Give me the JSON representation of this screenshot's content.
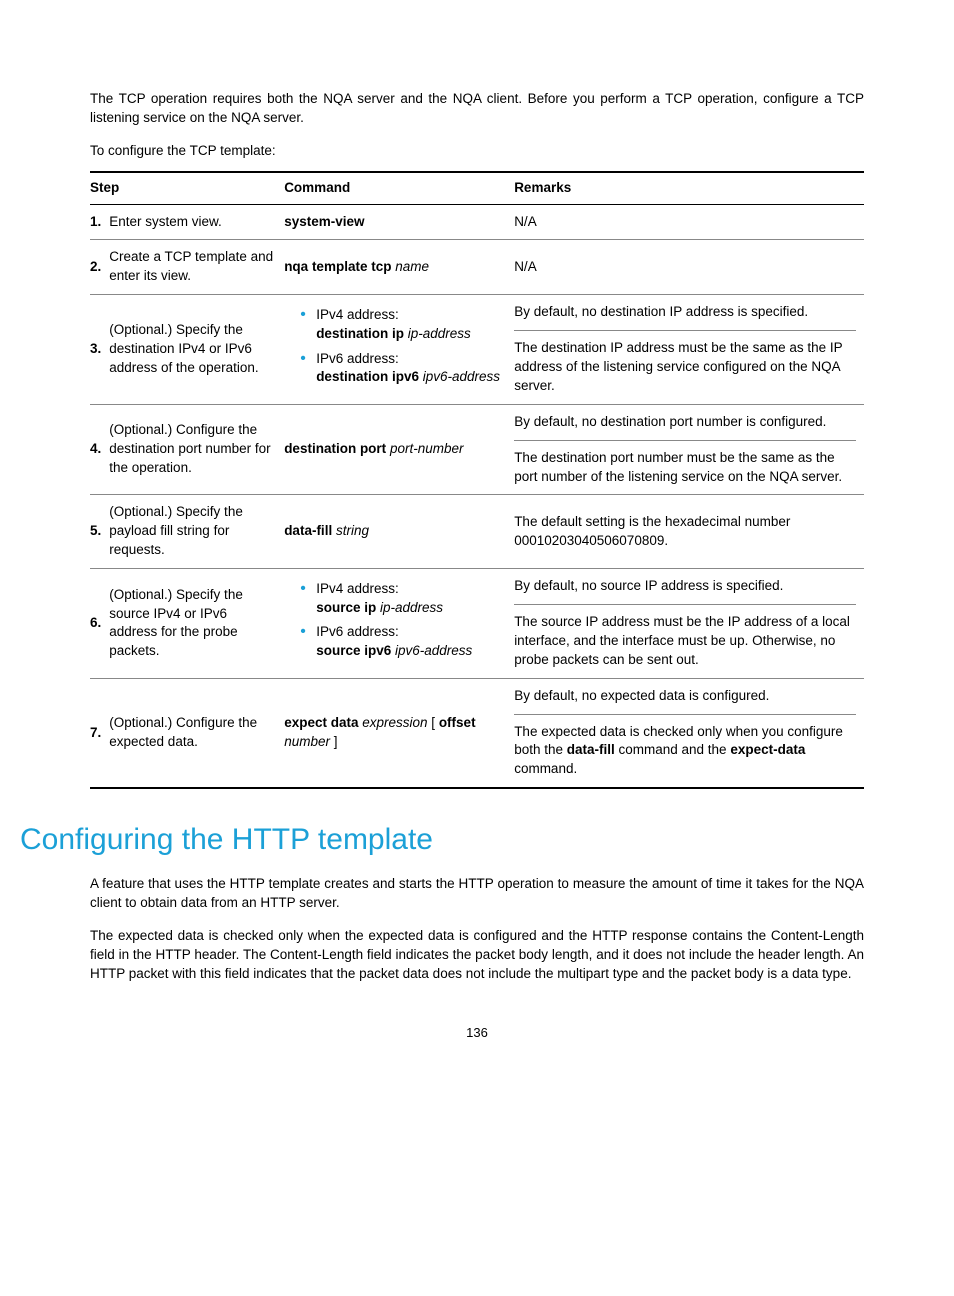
{
  "intro": {
    "p1": "The TCP operation requires both the NQA server and the NQA client. Before you perform a TCP operation, configure a TCP listening service on the NQA server.",
    "p2": "To configure the TCP template:"
  },
  "table": {
    "columns": {
      "step": "Step",
      "command": "Command",
      "remarks": "Remarks"
    },
    "row1": {
      "num": "1.",
      "step": "Enter system view.",
      "cmd_b": "system-view",
      "rem": "N/A"
    },
    "row2": {
      "num": "2.",
      "step": "Create a TCP template and enter its view.",
      "cmd_b": "nqa template tcp",
      "cmd_i": "name",
      "rem": "N/A"
    },
    "row3": {
      "num": "3.",
      "step": "(Optional.) Specify the destination IPv4 or IPv6 address of the operation.",
      "li1_a": "IPv4 address:",
      "li1_b": "destination ip",
      "li1_i": "ip-address",
      "li2_a": "IPv6 address:",
      "li2_b": "destination ipv6",
      "li2_i": "ipv6-address",
      "rem1": "By default, no destination IP address is specified.",
      "rem2": "The destination IP address must be the same as the IP address of the listening service configured on the NQA server."
    },
    "row4": {
      "num": "4.",
      "step": "(Optional.) Configure the destination port number for the operation.",
      "cmd_b": "destination port",
      "cmd_i": "port-number",
      "rem1": "By default, no destination port number is configured.",
      "rem2": "The destination port number must be the same as the port number of the listening service on the NQA server."
    },
    "row5": {
      "num": "5.",
      "step": "(Optional.) Specify the payload fill string for requests.",
      "cmd_b": "data-fill",
      "cmd_i": "string",
      "rem": "The default setting is the hexadecimal number 00010203040506070809."
    },
    "row6": {
      "num": "6.",
      "step": "(Optional.) Specify the source IPv4 or IPv6 address for the probe packets.",
      "li1_a": "IPv4 address:",
      "li1_b": "source ip",
      "li1_i": "ip-address",
      "li2_a": "IPv6 address:",
      "li2_b": "source ipv6",
      "li2_i": "ipv6-address",
      "rem1": "By default, no source IP address is specified.",
      "rem2": "The source IP address must be the IP address of a local interface, and the interface must be up. Otherwise, no probe packets can be sent out."
    },
    "row7": {
      "num": "7.",
      "step": "(Optional.) Configure the expected data.",
      "cmd_b1": "expect data",
      "cmd_i1": "expression",
      "cmd_t1": " [ ",
      "cmd_b2": "offset",
      "cmd_i2": "number",
      "cmd_t2": " ]",
      "rem1": "By default, no expected data is configured.",
      "rem2a": "The expected data is checked only when you configure both the ",
      "rem2b1": "data-fill",
      "rem2m": " command and the ",
      "rem2b2": "expect-data",
      "rem2e": " command."
    }
  },
  "section_heading": "Configuring the HTTP template",
  "body": {
    "p1": "A feature that uses the HTTP template creates and starts the HTTP operation to measure the amount of time it takes for the NQA client to obtain data from an HTTP server.",
    "p2": "The expected data is checked only when the expected data is configured and the HTTP response contains the Content-Length field in the HTTP header. The Content-Length field indicates the packet body length, and it does not include the header length. An HTTP packet with this field indicates that the packet data does not include the multipart type and the packet body is a data type."
  },
  "page_number": "136",
  "colors": {
    "accent": "#1ba0d7"
  }
}
